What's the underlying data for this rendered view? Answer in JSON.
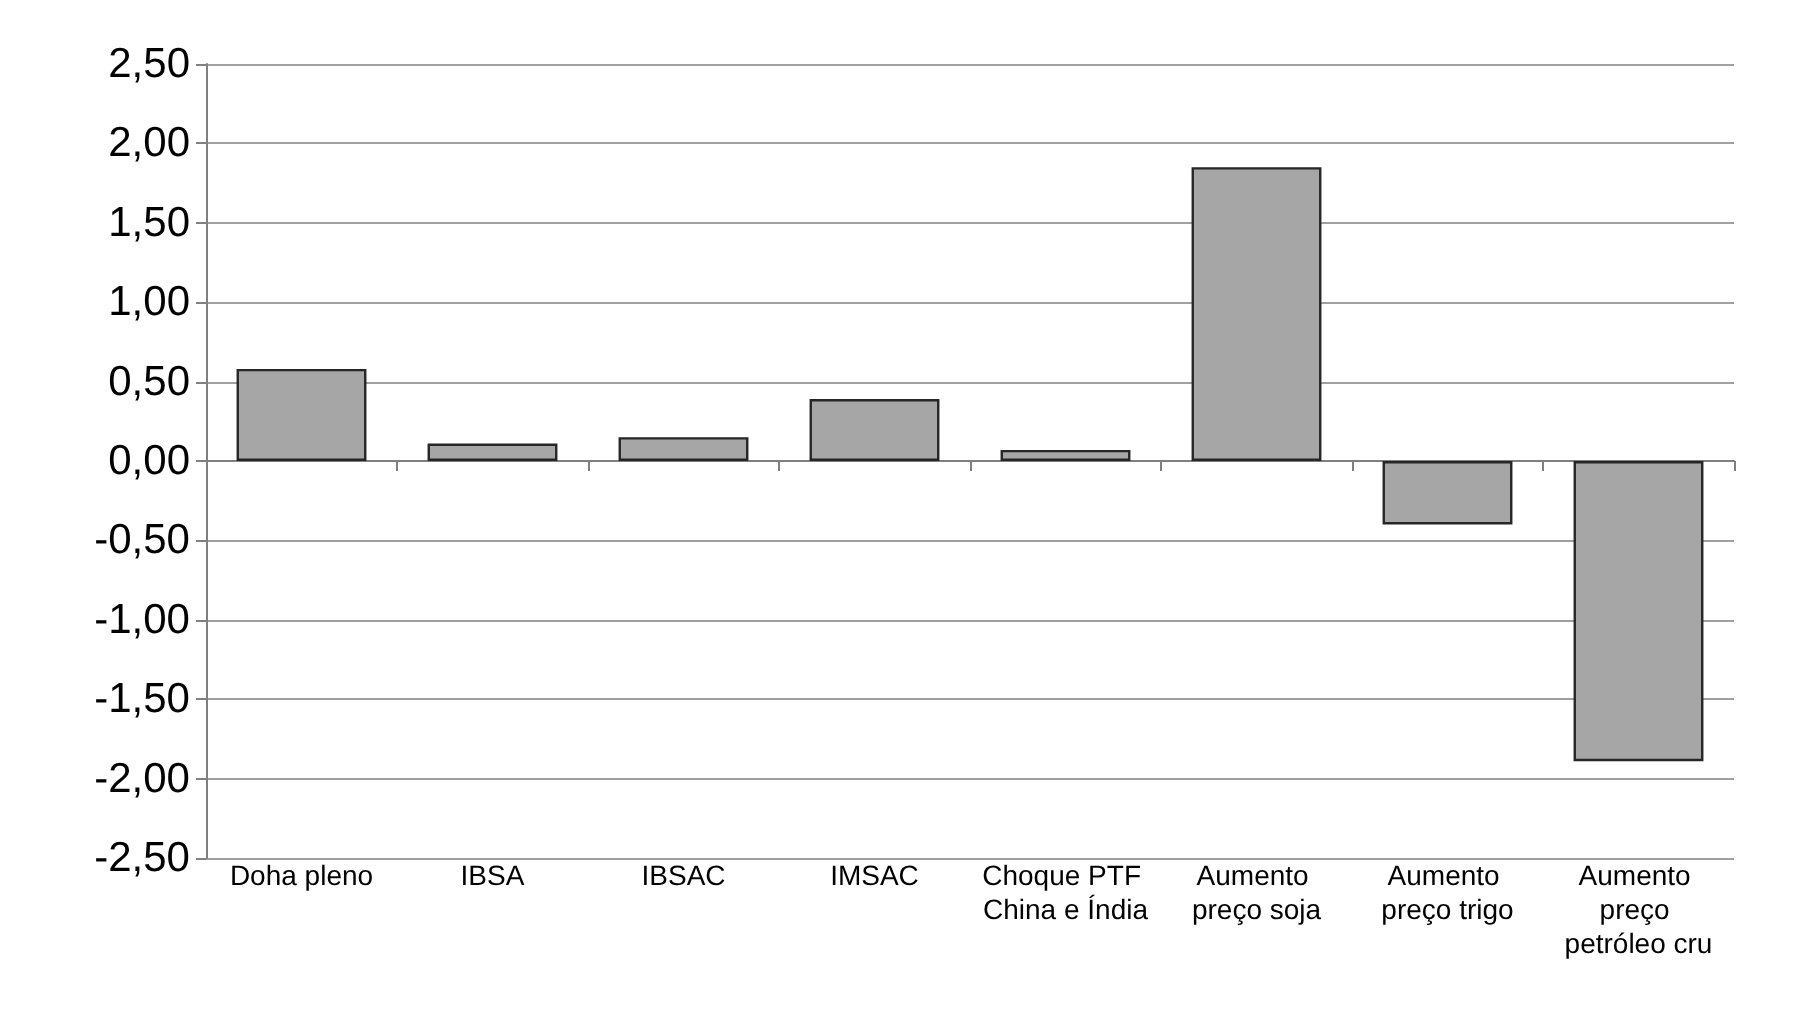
{
  "chart_data": {
    "type": "bar",
    "categories": [
      "Doha pleno",
      "IBSA",
      "IBSAC",
      "IMSAC",
      "Choque PTF China e Índia",
      "Aumento preço soja",
      "Aumento preço trigo",
      "Aumento preço petróleo cru"
    ],
    "values": [
      0.58,
      0.11,
      0.15,
      0.39,
      0.07,
      1.85,
      -0.4,
      -1.89
    ],
    "color": "#a6a6a6",
    "ylim": [
      -2.5,
      2.5
    ],
    "yticks": [
      {
        "value": -2.5,
        "label": "-2,50"
      },
      {
        "value": -2,
        "label": "-2,00"
      },
      {
        "value": -1.5,
        "label": "-1,50"
      },
      {
        "value": -1,
        "label": "-1,00"
      },
      {
        "value": -0.5,
        "label": "-0,50"
      },
      {
        "value": 0,
        "label": "0,00"
      },
      {
        "value": 0.5,
        "label": "0,50"
      },
      {
        "value": 1,
        "label": "1,00"
      },
      {
        "value": 1.5,
        "label": "1,50"
      },
      {
        "value": 2,
        "label": "2,00"
      },
      {
        "value": 2.5,
        "label": "2,50"
      }
    ],
    "grid": "y"
  }
}
